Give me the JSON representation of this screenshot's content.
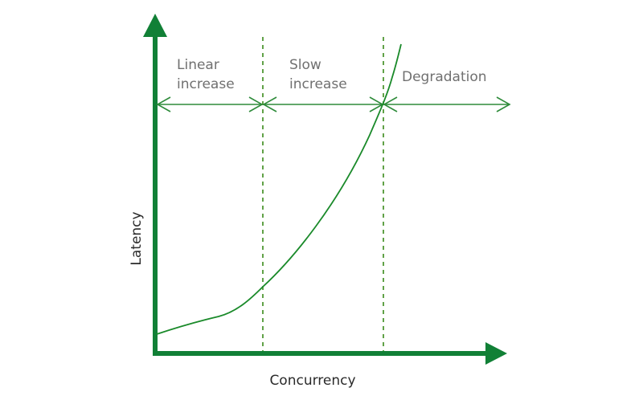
{
  "labels": {
    "x_axis": "Concurrency",
    "y_axis": "Latency",
    "regions": [
      {
        "line1": "Linear",
        "line2": "increase"
      },
      {
        "line1": "Slow",
        "line2": "increase"
      },
      {
        "line1": "Degradation",
        "line2": ""
      }
    ]
  },
  "colors": {
    "axis": "#118036",
    "curve": "#1a8a2a",
    "arrow": "#2e8b3a",
    "divider": "#3a8a1a",
    "label_text": "#707070",
    "axis_text": "#2a2a2a"
  }
}
